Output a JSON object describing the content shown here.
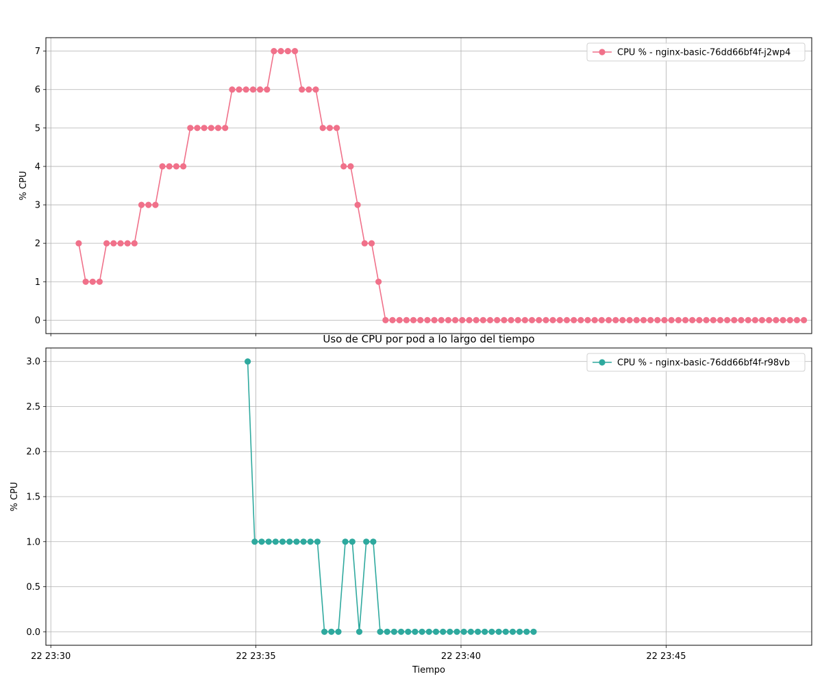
{
  "figure": {
    "title": "Uso de CPU por pod a lo largo del tiempo",
    "xlabel": "Tiempo",
    "x_ticks": [
      "22 23:30",
      "22 23:35",
      "22 23:40",
      "22 23:45"
    ]
  },
  "chart_data": [
    {
      "type": "line",
      "title": "",
      "xlabel": "",
      "ylabel": "% CPU",
      "x_unit": "minutes since 22 23:30",
      "xlim": [
        -0.12,
        18.55
      ],
      "ylim": [
        -0.35,
        7.35
      ],
      "y_ticks": [
        "0",
        "1",
        "2",
        "3",
        "4",
        "5",
        "6",
        "7"
      ],
      "y_tick_values": [
        0,
        1,
        2,
        3,
        4,
        5,
        6,
        7
      ],
      "grid": true,
      "legend": "top-right",
      "series": [
        {
          "name": "CPU % - nginx-basic-76dd66bf4f-j2wp4",
          "color": "#f0718a",
          "x_start": 0.68,
          "x_step": 0.17,
          "values": [
            2,
            1,
            1,
            1,
            2,
            2,
            2,
            2,
            2,
            3,
            3,
            3,
            4,
            4,
            4,
            4,
            5,
            5,
            5,
            5,
            5,
            5,
            6,
            6,
            6,
            6,
            6,
            6,
            7,
            7,
            7,
            7,
            6,
            6,
            6,
            5,
            5,
            5,
            4,
            4,
            3,
            2,
            2,
            1,
            0,
            0,
            0,
            0,
            0,
            0,
            0,
            0,
            0,
            0,
            0,
            0,
            0,
            0,
            0,
            0,
            0,
            0,
            0,
            0,
            0,
            0,
            0,
            0,
            0,
            0,
            0,
            0,
            0,
            0,
            0,
            0,
            0,
            0,
            0,
            0,
            0,
            0,
            0,
            0,
            0,
            0,
            0,
            0,
            0,
            0,
            0,
            0,
            0,
            0,
            0,
            0,
            0,
            0,
            0,
            0,
            0,
            0,
            0,
            0,
            0
          ]
        }
      ]
    },
    {
      "type": "line",
      "title": "",
      "xlabel": "Tiempo",
      "ylabel": "% CPU",
      "x_unit": "minutes since 22 23:30",
      "xlim": [
        -0.12,
        18.55
      ],
      "ylim": [
        -0.15,
        3.15
      ],
      "y_ticks": [
        "0.0",
        "0.5",
        "1.0",
        "1.5",
        "2.0",
        "2.5",
        "3.0"
      ],
      "y_tick_values": [
        0,
        0.5,
        1,
        1.5,
        2,
        2.5,
        3
      ],
      "grid": true,
      "legend": "top-right",
      "series": [
        {
          "name": "CPU % - nginx-basic-76dd66bf4f-r98vb",
          "color": "#2ea99e",
          "x_start": 4.8,
          "x_step": 0.17,
          "values": [
            3,
            1,
            1,
            1,
            1,
            1,
            1,
            1,
            1,
            1,
            1,
            0,
            0,
            0,
            1,
            1,
            0,
            1,
            1,
            0,
            0,
            0,
            0,
            0,
            0,
            0,
            0,
            0,
            0,
            0,
            0,
            0,
            0,
            0,
            0,
            0,
            0,
            0,
            0,
            0,
            0,
            0
          ]
        }
      ]
    }
  ]
}
